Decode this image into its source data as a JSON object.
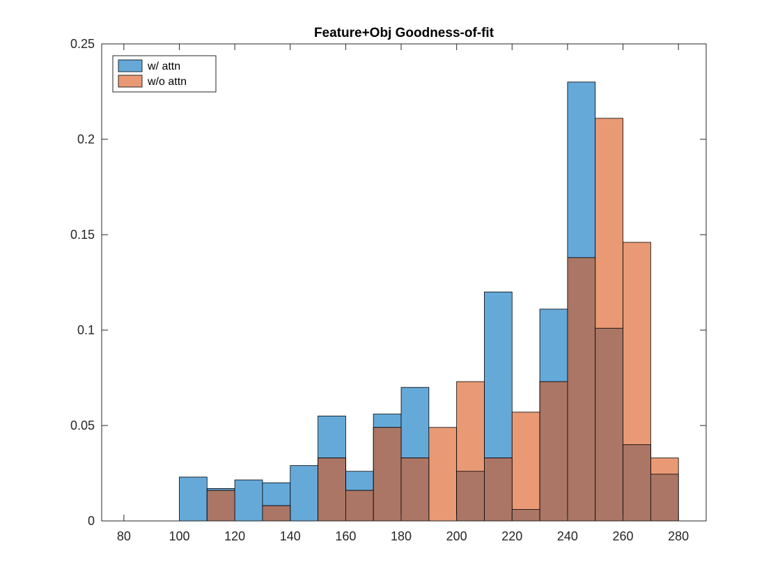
{
  "chart_data": {
    "type": "bar",
    "subtype": "overlapping-histogram",
    "title": "Feature+Obj Goodness-of-fit",
    "xlabel": "",
    "ylabel": "",
    "xlim": [
      72,
      290
    ],
    "ylim": [
      0,
      0.25
    ],
    "x_ticks": [
      80,
      100,
      120,
      140,
      160,
      180,
      200,
      220,
      240,
      260,
      280
    ],
    "y_ticks": [
      0,
      0.05,
      0.1,
      0.15,
      0.2,
      0.25
    ],
    "y_tick_labels": [
      "0",
      "0.05",
      "0.1",
      "0.15",
      "0.2",
      "0.25"
    ],
    "bin_width": 10,
    "bin_starts": [
      100,
      110,
      120,
      130,
      140,
      150,
      160,
      170,
      180,
      190,
      200,
      210,
      220,
      230,
      240,
      250,
      260,
      270
    ],
    "grid": false,
    "legend_position": "top-left",
    "overlap_color": "#ab7665",
    "series": [
      {
        "name": "w/ attn",
        "color": "#65a9d9",
        "values": [
          0.023,
          0.017,
          0.0215,
          0.02,
          0.029,
          0.055,
          0.026,
          0.056,
          0.07,
          0.0,
          0.026,
          0.12,
          0.006,
          0.111,
          0.23,
          0.101,
          0.04,
          0.0245
        ]
      },
      {
        "name": "w/o attn",
        "color": "#e99a74",
        "values": [
          0.0,
          0.016,
          0.0,
          0.008,
          0.0,
          0.033,
          0.016,
          0.049,
          0.033,
          0.049,
          0.073,
          0.033,
          0.057,
          0.073,
          0.138,
          0.211,
          0.146,
          0.033
        ]
      }
    ]
  }
}
